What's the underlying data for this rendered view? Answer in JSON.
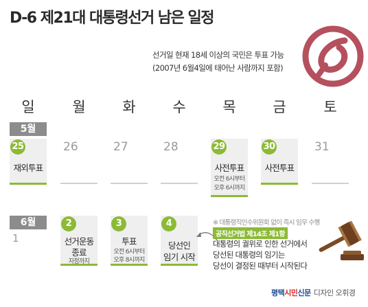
{
  "title": "D-6 제21대 대통령선거 남은 일정",
  "eligibility": {
    "line1": "선거일 현재 18세 이상의 국민은 투표 가능",
    "line2": "(2007년 6월4일에 태어난 사람까지 포함)"
  },
  "weekdays": [
    "일",
    "월",
    "화",
    "수",
    "목",
    "금",
    "토"
  ],
  "may": {
    "label": "5월",
    "days": [
      {
        "num": "25",
        "event": "재외투표",
        "highlight": true
      },
      {
        "num": "26"
      },
      {
        "num": "27"
      },
      {
        "num": "28"
      },
      {
        "num": "29",
        "event": "사전투표",
        "sub1": "오전 6시부터",
        "sub2": "오후 6시까지",
        "highlight": true
      },
      {
        "num": "30",
        "event": "사전투표",
        "highlight": true
      },
      {
        "num": "31"
      }
    ]
  },
  "june": {
    "label": "6월",
    "days": [
      {
        "num": "1"
      },
      {
        "num": "2",
        "event1": "선거운동",
        "event2": "종료",
        "sub1": "자정까지",
        "highlight": true
      },
      {
        "num": "3",
        "event1": "투표",
        "sub1": "오전 6시부터",
        "sub2": "오후 8시까지",
        "highlight": true
      },
      {
        "num": "4",
        "event1": "당선인",
        "event2": "임기 시작",
        "highlight": true
      }
    ]
  },
  "notes": {
    "commission": "※ 대통령직인수위원회 없이 즉시 임무 수행",
    "law_badge": "공직선거법 제14조 제1항",
    "law_lines": [
      "대통령의 궐위로 인한 선거에서",
      "당선된 대통령의 임기는",
      "당선이 결정된 때부터 시작된다"
    ]
  },
  "footer": {
    "brand_a": "평택",
    "brand_b": "시민",
    "brand_c": "신문",
    "credit": "디자인 오휘경"
  },
  "colors": {
    "accent": "#8cba35",
    "month_bar": "#8c8c8c",
    "seal": "#b5505e"
  },
  "icons": [
    "vote-seal-icon",
    "gavel-icon",
    "curved-arrow-icon"
  ]
}
